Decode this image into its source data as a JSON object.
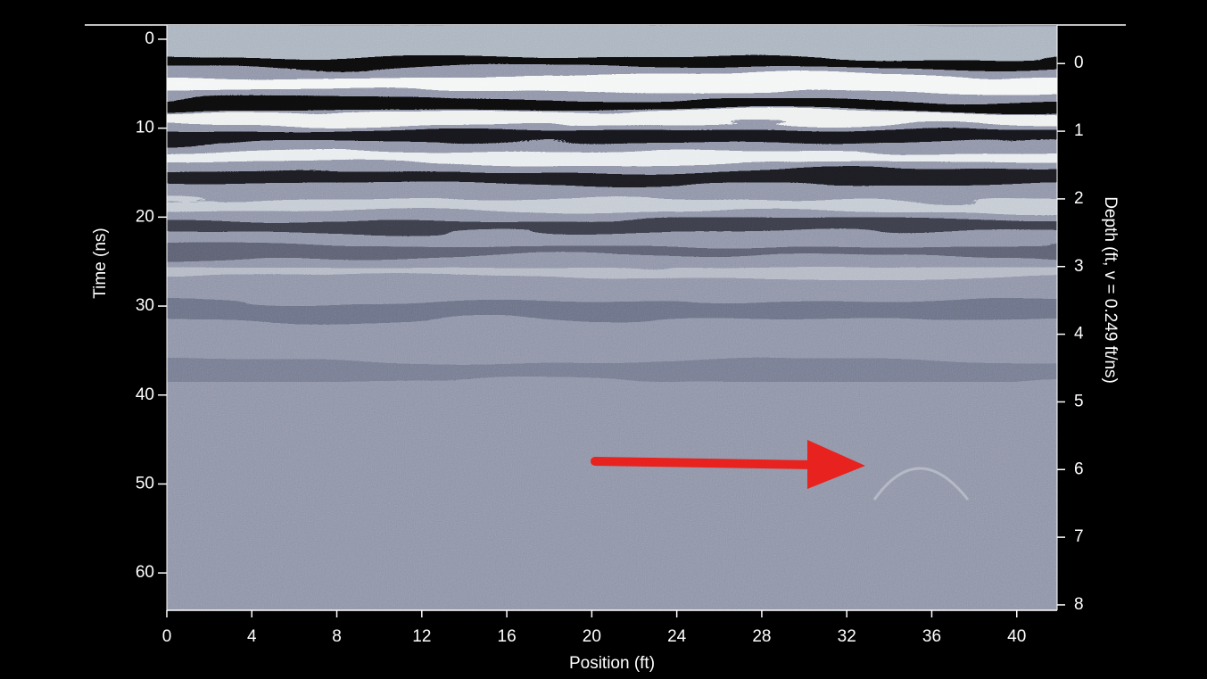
{
  "chart_data": {
    "type": "image",
    "xlabel": "Position (ft)",
    "ylabel": "Time (ns)",
    "y2label": "Depth (ft, v = 0.249 ft/ns)",
    "xlim": [
      0,
      41.9
    ],
    "xticks": [
      0,
      4,
      8,
      12,
      16,
      20,
      24,
      28,
      32,
      36,
      40
    ],
    "ylim": [
      64.2,
      -1.6
    ],
    "yticks": [
      0,
      10,
      20,
      30,
      40,
      50,
      60
    ],
    "y2lim": [
      8.08,
      -0.57
    ],
    "y2ticks": [
      0,
      1,
      2,
      3,
      4,
      5,
      6,
      7,
      8
    ]
  }
}
